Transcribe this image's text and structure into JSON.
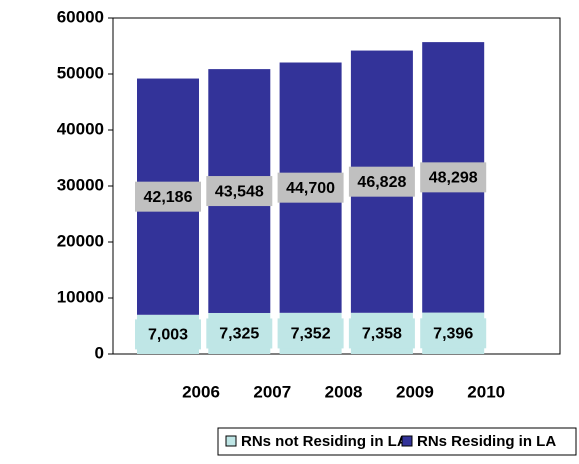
{
  "chart_data": {
    "type": "stacked_bar",
    "categories": [
      "2006",
      "2007",
      "2008",
      "2009",
      "2010"
    ],
    "series": [
      {
        "name": "RNs not Residing in LA",
        "color": "#bfe6e6",
        "values": [
          7003,
          7325,
          7352,
          7358,
          7396
        ],
        "value_labels": [
          "7,003",
          "7,325",
          "7,352",
          "7,358",
          "7,396"
        ]
      },
      {
        "name": "RNs Residing in LA",
        "color": "#333399",
        "values": [
          42186,
          43548,
          44700,
          46828,
          48298
        ],
        "value_labels": [
          "42,186",
          "43,548",
          "44,700",
          "46,828",
          "48,298"
        ]
      }
    ],
    "ylim": [
      0,
      60000
    ],
    "yticks": [
      0,
      10000,
      20000,
      30000,
      40000,
      50000,
      60000
    ],
    "legend": "bottom"
  }
}
